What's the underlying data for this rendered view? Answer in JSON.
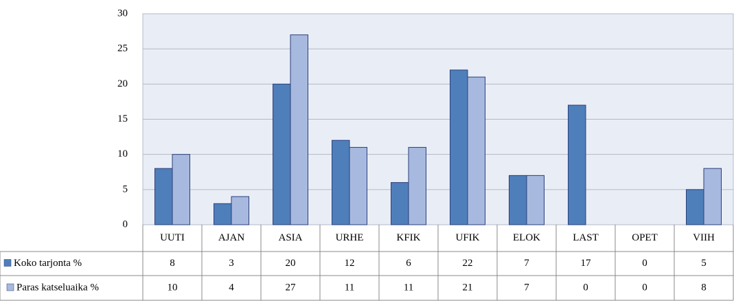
{
  "chart_data": {
    "type": "bar",
    "categories": [
      "UUTI",
      "AJAN",
      "ASIA",
      "URHE",
      "KFIK",
      "UFIK",
      "ELOK",
      "LAST",
      "OPET",
      "VIIH"
    ],
    "series": [
      {
        "name": "Koko tarjonta %",
        "color": "#4f7fba",
        "values": [
          8,
          3,
          20,
          12,
          6,
          22,
          7,
          17,
          0,
          5
        ]
      },
      {
        "name": "Paras katseluaika %",
        "color": "#a7b9de",
        "values": [
          10,
          4,
          27,
          11,
          11,
          21,
          7,
          0,
          0,
          8
        ]
      }
    ],
    "ylim": [
      0,
      30
    ],
    "yticks": [
      0,
      5,
      10,
      15,
      20,
      25,
      30
    ],
    "grid": true
  }
}
